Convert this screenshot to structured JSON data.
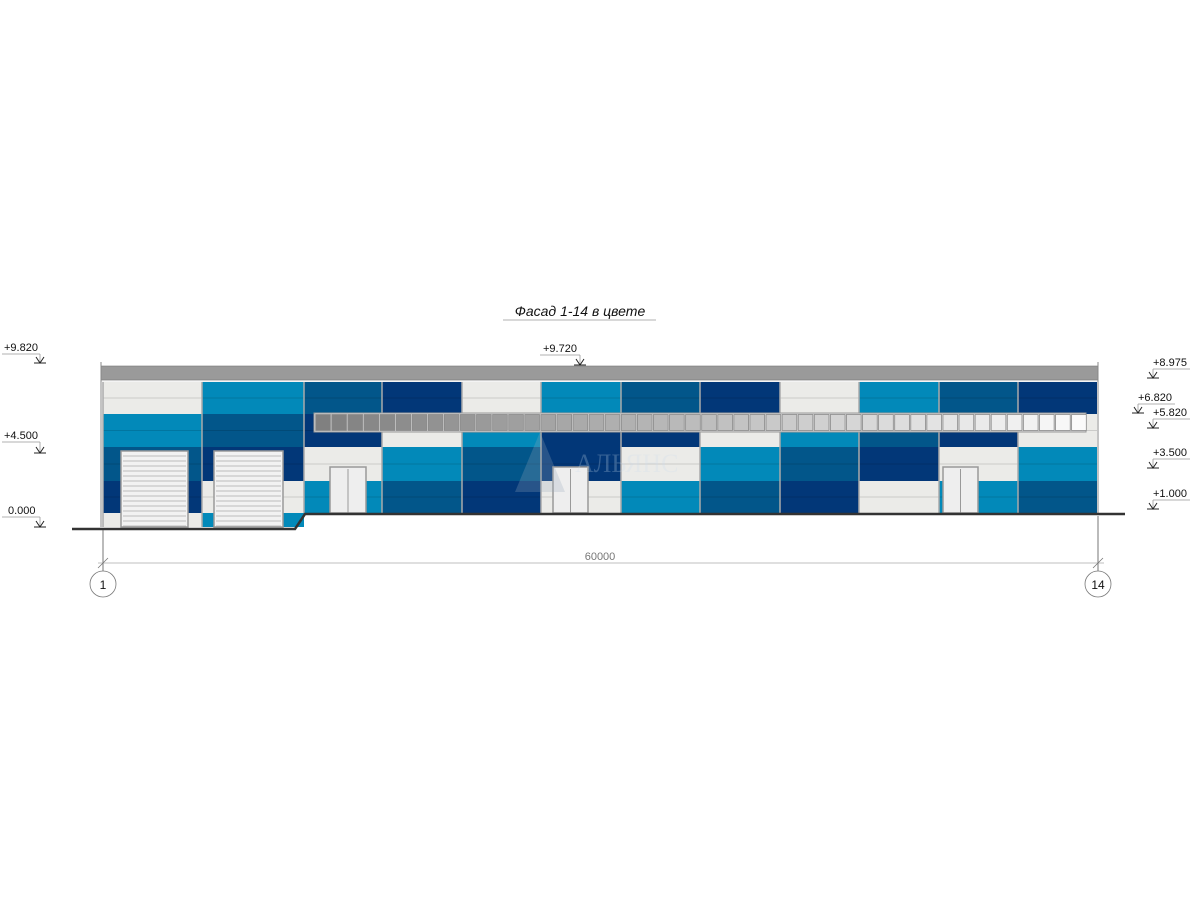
{
  "title": "Фасад 1-14 в цвете",
  "elevations": {
    "left": [
      "+9.820",
      "+4.500",
      "0.000"
    ],
    "top": "+9.720",
    "right": [
      "+8.975",
      "+6.820",
      "+5.820",
      "+3.500",
      "+1.000"
    ]
  },
  "dimension": "60000",
  "axes": [
    "1",
    "14"
  ],
  "watermark": {
    "logo": "АЛЬЯНС",
    "tagline": "строительная компания"
  },
  "colors": {
    "W": "#ebebe8",
    "L": "#0289b9",
    "M": "#02568a",
    "D": "#023778",
    "roof": "#9a9a9a",
    "ground": "#333333"
  },
  "bays": [
    {
      "bands": [
        "W",
        "L",
        "M",
        "D"
      ],
      "base": "W",
      "door": "rolling"
    },
    {
      "bands": [
        "L",
        "M",
        "D",
        "W"
      ],
      "base": "L",
      "door": "rolling"
    },
    {
      "bands": [
        "M",
        "D",
        "W",
        "L"
      ],
      "door": "personnel"
    },
    {
      "bands": [
        "D",
        "W",
        "L",
        "M"
      ]
    },
    {
      "bands": [
        "W",
        "L",
        "M",
        "D"
      ]
    },
    {
      "bands": [
        "L",
        "D",
        "D",
        "W"
      ],
      "door": "personnel"
    },
    {
      "bands": [
        "M",
        "D",
        "W",
        "L"
      ]
    },
    {
      "bands": [
        "D",
        "W",
        "L",
        "M"
      ]
    },
    {
      "bands": [
        "W",
        "L",
        "M",
        "D"
      ]
    },
    {
      "bands": [
        "L",
        "M",
        "D",
        "W"
      ]
    },
    {
      "bands": [
        "M",
        "D",
        "W",
        "L"
      ],
      "door": "personnel"
    },
    {
      "bands": [
        "D",
        "W",
        "L",
        "M"
      ]
    }
  ]
}
